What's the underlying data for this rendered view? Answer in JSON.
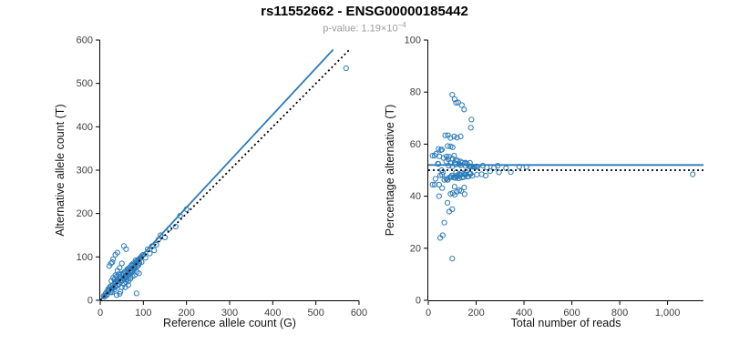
{
  "header": {
    "title": "rs11552662 - ENSG00000185442",
    "pvalue_prefix": "p-value: ",
    "pvalue_mantissa": "1.19×10",
    "pvalue_exponent": "−4"
  },
  "colors": {
    "accent": "#2b7bba",
    "identity_line": "#000000",
    "axis": "#000000",
    "tick_label": "#404040",
    "subtitle": "#9b9b9b"
  },
  "chart_data": [
    {
      "type": "scatter",
      "title": "",
      "xlabel": "Reference allele count (G)",
      "ylabel": "Alternative allele count (T)",
      "xlim": [
        0,
        600
      ],
      "ylim": [
        0,
        600
      ],
      "xticks": [
        0,
        100,
        200,
        300,
        400,
        500,
        600
      ],
      "xtick_labels": [
        "0",
        "100",
        "200",
        "300",
        "400",
        "500",
        "600"
      ],
      "yticks": [
        0,
        100,
        200,
        300,
        400,
        500,
        600
      ],
      "ytick_labels": [
        "0",
        "100",
        "200",
        "300",
        "400",
        "500",
        "600"
      ],
      "grid": false,
      "legend": "none",
      "marker": "open-circle",
      "lines": [
        {
          "name": "fit-line",
          "style": "solid",
          "color": "accent",
          "x1": 0,
          "y1": 0,
          "x2": 540,
          "y2": 578
        },
        {
          "name": "identity-line",
          "style": "dotted",
          "color": "#000000",
          "x1": 0,
          "y1": 0,
          "x2": 578,
          "y2": 578
        }
      ],
      "points_ref_alt": [
        [
          10,
          8
        ],
        [
          8,
          10
        ],
        [
          12,
          15
        ],
        [
          15,
          12
        ],
        [
          14,
          18
        ],
        [
          16,
          14
        ],
        [
          18,
          25
        ],
        [
          19,
          21
        ],
        [
          20,
          22
        ],
        [
          21,
          26
        ],
        [
          22,
          30
        ],
        [
          24,
          33
        ],
        [
          25,
          20
        ],
        [
          26,
          24
        ],
        [
          27,
          18
        ],
        [
          28,
          28
        ],
        [
          29,
          35
        ],
        [
          30,
          28
        ],
        [
          31,
          30
        ],
        [
          33,
          25
        ],
        [
          34,
          42
        ],
        [
          35,
          40
        ],
        [
          36,
          31
        ],
        [
          38,
          45
        ],
        [
          39,
          48
        ],
        [
          40,
          35
        ],
        [
          41,
          44
        ],
        [
          43,
          37
        ],
        [
          44,
          38
        ],
        [
          45,
          50
        ],
        [
          46,
          55
        ],
        [
          47,
          42
        ],
        [
          48,
          60
        ],
        [
          49,
          52
        ],
        [
          50,
          45
        ],
        [
          51,
          47
        ],
        [
          52,
          58
        ],
        [
          53,
          62
        ],
        [
          55,
          60
        ],
        [
          56,
          50
        ],
        [
          57,
          66
        ],
        [
          58,
          52
        ],
        [
          59,
          57
        ],
        [
          60,
          55
        ],
        [
          61,
          54
        ],
        [
          62,
          68
        ],
        [
          63,
          72
        ],
        [
          64,
          58
        ],
        [
          65,
          70
        ],
        [
          66,
          62
        ],
        [
          67,
          75
        ],
        [
          68,
          60
        ],
        [
          69,
          64
        ],
        [
          70,
          65
        ],
        [
          71,
          68
        ],
        [
          72,
          80
        ],
        [
          73,
          82
        ],
        [
          74,
          66
        ],
        [
          75,
          80
        ],
        [
          76,
          72
        ],
        [
          77,
          85
        ],
        [
          78,
          70
        ],
        [
          79,
          74
        ],
        [
          80,
          78
        ],
        [
          81,
          76
        ],
        [
          82,
          92
        ],
        [
          83,
          88
        ],
        [
          85,
          90
        ],
        [
          86,
          78
        ],
        [
          87,
          92
        ],
        [
          88,
          80
        ],
        [
          89,
          84
        ],
        [
          90,
          95
        ],
        [
          91,
          86
        ],
        [
          93,
          98
        ],
        [
          95,
          100
        ],
        [
          96,
          88
        ],
        [
          98,
          104
        ],
        [
          100,
          105
        ],
        [
          105,
          98
        ],
        [
          110,
          118
        ],
        [
          115,
          108
        ],
        [
          120,
          125
        ],
        [
          125,
          115
        ],
        [
          130,
          128
        ],
        [
          135,
          140
        ],
        [
          140,
          150
        ],
        [
          150,
          145
        ],
        [
          160,
          165
        ],
        [
          175,
          170
        ],
        [
          185,
          195
        ],
        [
          200,
          210
        ],
        [
          570,
          535
        ],
        [
          84,
          16
        ],
        [
          38,
          12
        ],
        [
          45,
          15
        ],
        [
          47,
          20
        ],
        [
          50,
          30
        ],
        [
          58,
          30
        ],
        [
          65,
          35
        ],
        [
          55,
          125
        ],
        [
          60,
          118
        ],
        [
          25,
          85
        ],
        [
          30,
          95
        ],
        [
          35,
          105
        ],
        [
          40,
          110
        ],
        [
          21,
          79
        ],
        [
          28,
          88
        ],
        [
          30,
          52
        ],
        [
          35,
          58
        ],
        [
          40,
          68
        ],
        [
          26,
          45
        ],
        [
          45,
          75
        ],
        [
          50,
          85
        ],
        [
          33,
          48
        ],
        [
          42,
          60
        ],
        [
          38,
          55
        ],
        [
          55,
          38
        ],
        [
          60,
          42
        ],
        [
          70,
          50
        ],
        [
          66,
          45
        ],
        [
          75,
          55
        ],
        [
          80,
          58
        ],
        [
          90,
          62
        ],
        [
          62,
          48
        ],
        [
          85,
          65
        ]
      ]
    },
    {
      "type": "scatter",
      "title": "",
      "xlabel": "Total number of reads",
      "ylabel": "Percentage alternative (T)",
      "xlim": [
        0,
        1150
      ],
      "ylim": [
        0,
        100
      ],
      "xticks": [
        0,
        200,
        400,
        600,
        800,
        1000
      ],
      "xtick_labels": [
        "0",
        "200",
        "400",
        "600",
        "800",
        "1,000"
      ],
      "yticks": [
        0,
        20,
        40,
        60,
        80,
        100
      ],
      "ytick_labels": [
        "0",
        "20",
        "40",
        "60",
        "80",
        "100"
      ],
      "grid": false,
      "legend": "none",
      "marker": "open-circle",
      "derivation": "points derived from plot 1: x = ref + alt, y = 100 * alt / (ref + alt)",
      "lines": [
        {
          "name": "mean-line",
          "style": "solid",
          "color": "accent",
          "x1": 0,
          "y1": 52,
          "x2": 1150,
          "y2": 52
        },
        {
          "name": "expected-line",
          "style": "dotted",
          "color": "#000000",
          "x1": 0,
          "y1": 50,
          "x2": 1150,
          "y2": 50
        }
      ]
    }
  ]
}
